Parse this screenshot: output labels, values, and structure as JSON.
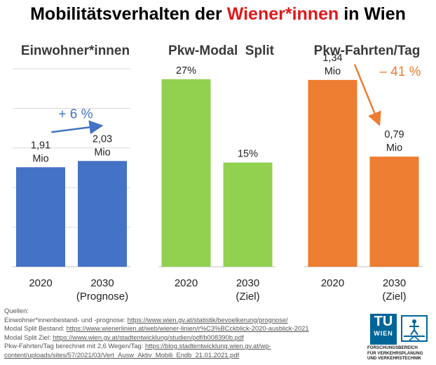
{
  "title": {
    "prefix": "Mobilitätsverhalten der ",
    "highlight": "Wiener*innen",
    "suffix": " in Wien"
  },
  "colors": {
    "blue": "#4472c4",
    "green": "#92d050",
    "orange": "#ed7d31",
    "title_red": "#e0191b",
    "grid": "#d9d9d9"
  },
  "chart_data": [
    {
      "type": "bar",
      "title": "Einwohner*innen",
      "categories": [
        "2020",
        "2030"
      ],
      "category_sublabels": [
        "",
        "(Prognose)"
      ],
      "values": [
        1.91,
        2.03
      ],
      "value_labels": [
        [
          "1,91",
          "Mio"
        ],
        [
          "2,03",
          "Mio"
        ]
      ],
      "unit": "Mio",
      "ylim": [
        0,
        3.8
      ],
      "grid": true,
      "color": "#4472c4",
      "annotation": {
        "text": "+ 6 %",
        "arrow": "up",
        "color": "#4472c4"
      }
    },
    {
      "type": "bar",
      "title": "Pkw-Modal  Split",
      "categories": [
        "2020",
        "2030"
      ],
      "category_sublabels": [
        "",
        "(Ziel)"
      ],
      "values": [
        27,
        15
      ],
      "value_labels": [
        [
          "27%"
        ],
        [
          "15%"
        ]
      ],
      "unit": "%",
      "ylim": [
        0,
        28.5
      ],
      "grid": false,
      "color": "#92d050"
    },
    {
      "type": "bar",
      "title": "Pkw-Fahrten/Tag",
      "categories": [
        "2020",
        "2030"
      ],
      "category_sublabels": [
        "",
        "(Ziel)"
      ],
      "values": [
        1.34,
        0.79
      ],
      "value_labels": [
        [
          "1,34",
          "Mio"
        ],
        [
          "0,79",
          "Mio"
        ]
      ],
      "unit": "Mio",
      "ylim": [
        0,
        1.42
      ],
      "grid": false,
      "color": "#ed7d31",
      "annotation": {
        "text": "– 41 %",
        "arrow": "down",
        "color": "#ed7d31"
      }
    }
  ],
  "sources": {
    "heading": "Quellen:",
    "lines": [
      {
        "text": "Einwohner*innenbestand- und -prognose: ",
        "link": "https://www.wien.gv.at/statistik/bevoelkerung/prognose/"
      },
      {
        "text": "Modal Split Bestand: ",
        "link": "https://www.wienerlinien.at/web/wiener-linien/r%C3%BCckblick-2020-ausblick-2021"
      },
      {
        "text": "Modal Split Ziel: ",
        "link": "https://www.wien.gv.at/stadtentwicklung/studien/pdf/b008390b.pdf"
      },
      {
        "text": "Pkw-Fahrten/Tag berechnet mit 2,6 Wegen/Tag: ",
        "link": "https://blog.stadtentwicklung.wien.gv.at/wp-"
      },
      {
        "text": "",
        "link": "content/uploads/sites/57/2021/03/Vert_Ausw_Aktiv_Mobili_Endb_21.01.2021.pdf"
      }
    ]
  },
  "logo": {
    "tu_top": "TU",
    "tu_bottom": "WIEN",
    "department_line1": "FORSCHUNGSBEREICH",
    "department_line2": "FÜR VERKEHRSPLANUNG",
    "department_line3": "UND VERKEHRSTECHNIK"
  }
}
